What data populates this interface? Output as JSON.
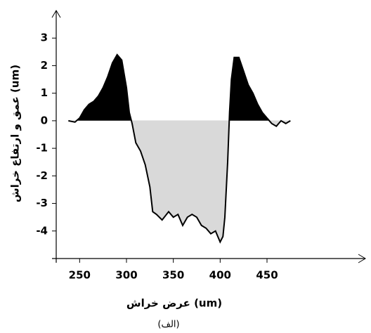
{
  "chart_data": {
    "type": "area",
    "x_label": "عرض خراش (um)",
    "y_label": "عمق و ارتفاع خراش (um)",
    "caption": "(الف)",
    "x": [
      238,
      245,
      250,
      255,
      260,
      265,
      270,
      275,
      280,
      285,
      290,
      295,
      300,
      303,
      306,
      310,
      315,
      320,
      325,
      328,
      332,
      338,
      345,
      350,
      355,
      360,
      365,
      370,
      375,
      380,
      385,
      390,
      395,
      400,
      403,
      405,
      408,
      410,
      412,
      415,
      420,
      425,
      430,
      435,
      440,
      445,
      450,
      455,
      460,
      465,
      470,
      475
    ],
    "values": [
      0,
      -0.05,
      0.1,
      0.4,
      0.6,
      0.7,
      0.9,
      1.2,
      1.6,
      2.1,
      2.4,
      2.2,
      1.2,
      0.3,
      -0.1,
      -0.8,
      -1.1,
      -1.6,
      -2.4,
      -3.3,
      -3.4,
      -3.6,
      -3.3,
      -3.5,
      -3.4,
      -3.8,
      -3.5,
      -3.4,
      -3.5,
      -3.8,
      -3.9,
      -4.1,
      -4.0,
      -4.4,
      -4.2,
      -3.5,
      -1.5,
      0.3,
      1.5,
      2.3,
      2.3,
      1.8,
      1.3,
      1.0,
      0.6,
      0.3,
      0.1,
      -0.1,
      -0.2,
      0.0,
      -0.1,
      0.0
    ],
    "color": "#000000",
    "positive_fill": "#000000",
    "negative_fill": "#d9d9d9",
    "xlim": [
      225,
      555
    ],
    "xticks": [
      250,
      300,
      350,
      400,
      450
    ],
    "ylim": [
      -5,
      4
    ],
    "yticks": [
      -4,
      -3,
      -2,
      -1,
      0,
      1,
      2,
      3
    ]
  }
}
